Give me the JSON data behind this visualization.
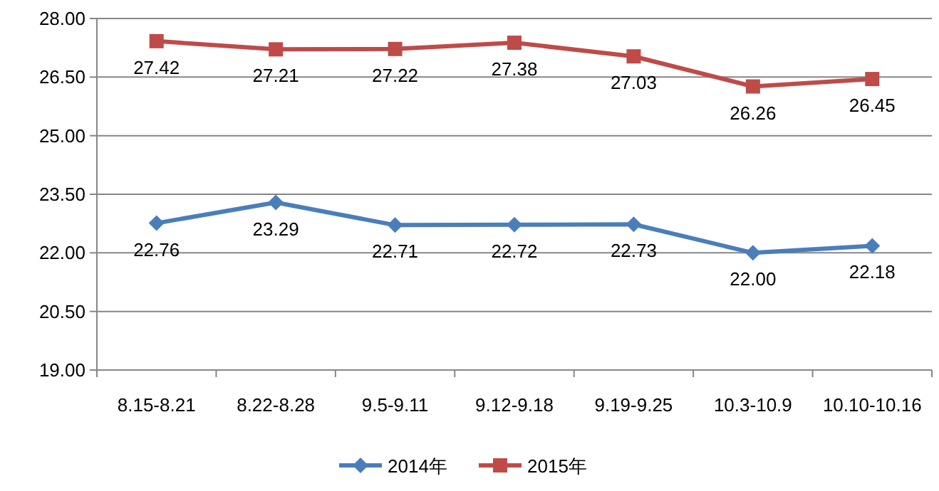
{
  "chart_data": {
    "type": "line",
    "categories": [
      "8.15-8.21",
      "8.22-8.28",
      "9.5-9.11",
      "9.12-9.18",
      "9.19-9.25",
      "10.3-10.9",
      "10.10-10.16"
    ],
    "series": [
      {
        "name": "2014年",
        "color": "#4a7ebb",
        "marker": "diamond",
        "values": [
          22.76,
          23.29,
          22.71,
          22.72,
          22.73,
          22.0,
          22.18
        ],
        "value_labels": [
          "22.76",
          "23.29",
          "22.71",
          "22.72",
          "22.73",
          "22.00",
          "22.18"
        ]
      },
      {
        "name": "2015年",
        "color": "#be4b48",
        "marker": "square",
        "values": [
          27.42,
          27.21,
          27.22,
          27.38,
          27.03,
          26.26,
          26.45
        ],
        "value_labels": [
          "27.42",
          "27.21",
          "27.22",
          "27.38",
          "27.03",
          "26.26",
          "26.45"
        ]
      }
    ],
    "ylim": [
      19,
      28
    ],
    "yticks": [
      {
        "value": 19,
        "label": "19.00"
      },
      {
        "value": 20.5,
        "label": "20.50"
      },
      {
        "value": 22,
        "label": "22.00"
      },
      {
        "value": 23.5,
        "label": "23.50"
      },
      {
        "value": 25,
        "label": "25.00"
      },
      {
        "value": 26.5,
        "label": "26.50"
      },
      {
        "value": 28,
        "label": "28.00"
      }
    ],
    "grid": "y",
    "legend": "bottom",
    "line_style": "solid"
  }
}
